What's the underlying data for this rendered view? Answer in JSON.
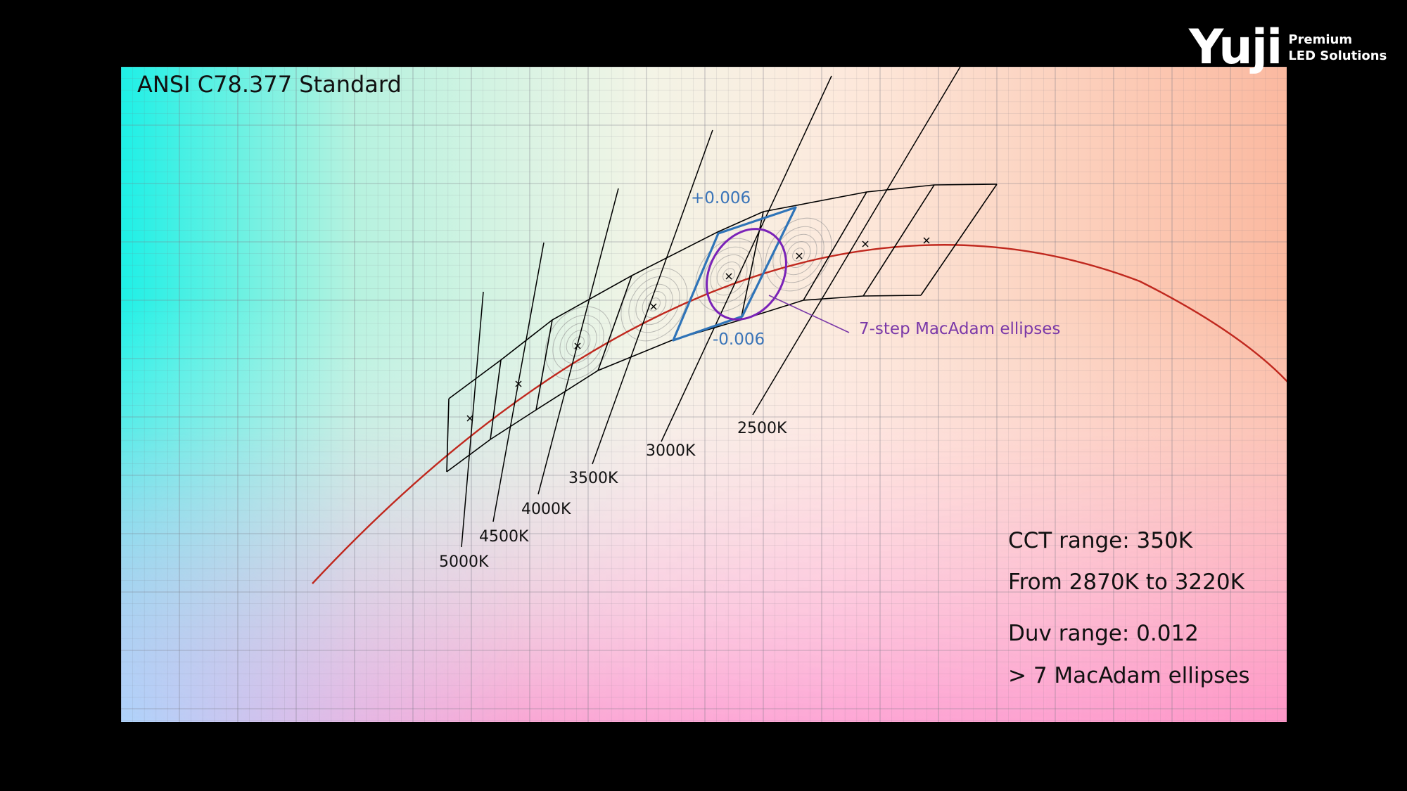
{
  "title": "ANSI C78.377 Standard",
  "logo": {
    "wordmark": "Yuji",
    "tagline_1": "Premium",
    "tagline_2": "LED Solutions"
  },
  "cct_labels": [
    "5000K",
    "4500K",
    "4000K",
    "3500K",
    "3000K",
    "2500K"
  ],
  "duv_upper_label": "+0.006",
  "duv_lower_label": "-0.006",
  "ellipse_label": "7-step MacAdam ellipses",
  "stats": {
    "cct_range": "CCT range: 350K",
    "from_to": "From 2870K to 3220K",
    "duv_range": "Duv range: 0.012",
    "macadam": "> 7 MacAdam ellipses"
  },
  "colors": {
    "planckian": "#c0281e",
    "highlight_quad": "#2f74b8",
    "ellipse": "#7a22b8",
    "duv_text": "#3a74b8",
    "ellipse_text": "#7a38a8",
    "frame": "#000000"
  }
}
